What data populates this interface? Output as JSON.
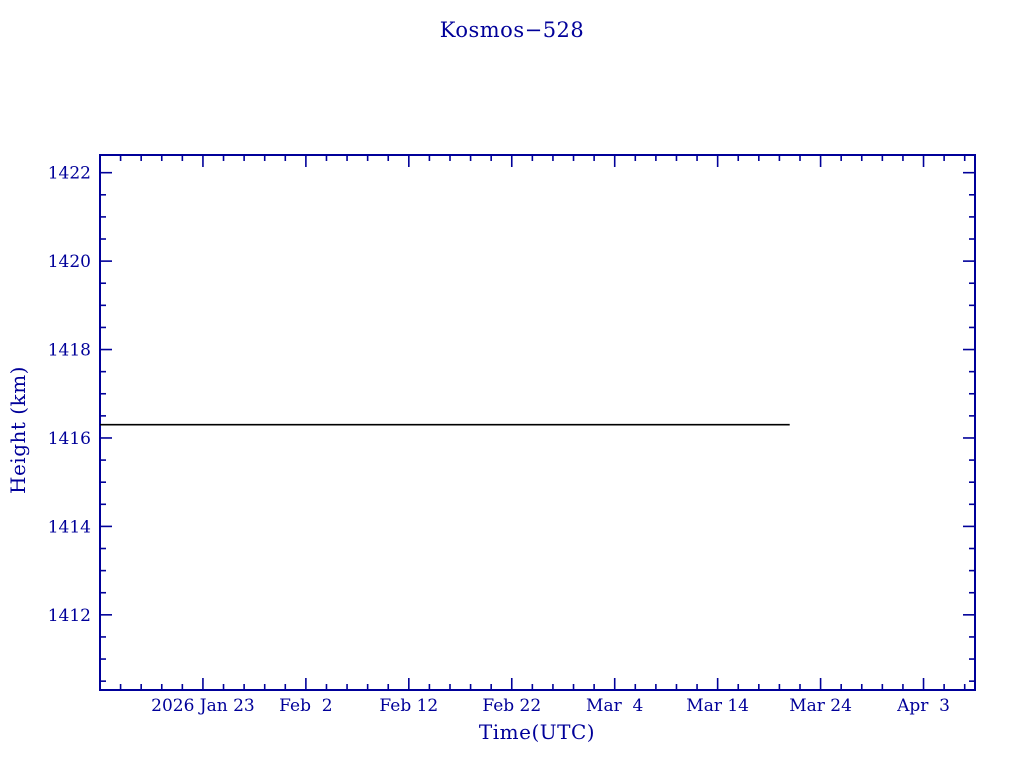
{
  "chart_data": {
    "type": "line",
    "title": "Kosmos−528",
    "xlabel": "Time(UTC)",
    "ylabel": "Height (km)",
    "x_unit": "days since 2026 Jan 13",
    "xlim": [
      0,
      85
    ],
    "ylim": [
      1410.3,
      1422.4
    ],
    "x_minor_step": 2,
    "y_minor_step": 0.5,
    "x_ticks": [
      {
        "pos": 10,
        "label": "2026 Jan 23"
      },
      {
        "pos": 20,
        "label": "Feb  2"
      },
      {
        "pos": 30,
        "label": "Feb 12"
      },
      {
        "pos": 40,
        "label": "Feb 22"
      },
      {
        "pos": 50,
        "label": "Mar  4"
      },
      {
        "pos": 60,
        "label": "Mar 14"
      },
      {
        "pos": 70,
        "label": "Mar 24"
      },
      {
        "pos": 80,
        "label": "Apr  3"
      }
    ],
    "y_ticks": [
      1412,
      1414,
      1416,
      1418,
      1420,
      1422
    ],
    "series": [
      {
        "name": "orbit-height",
        "color": "#000000",
        "points": [
          {
            "x": 0,
            "date": "2026 Jan 13",
            "y": 1416.3
          },
          {
            "x": 67,
            "date": "2026 Mar 21",
            "y": 1416.3
          }
        ]
      }
    ],
    "grid": false,
    "legend": false,
    "frame_color": "#000099",
    "text_color": "#000099",
    "background": "#ffffff"
  }
}
